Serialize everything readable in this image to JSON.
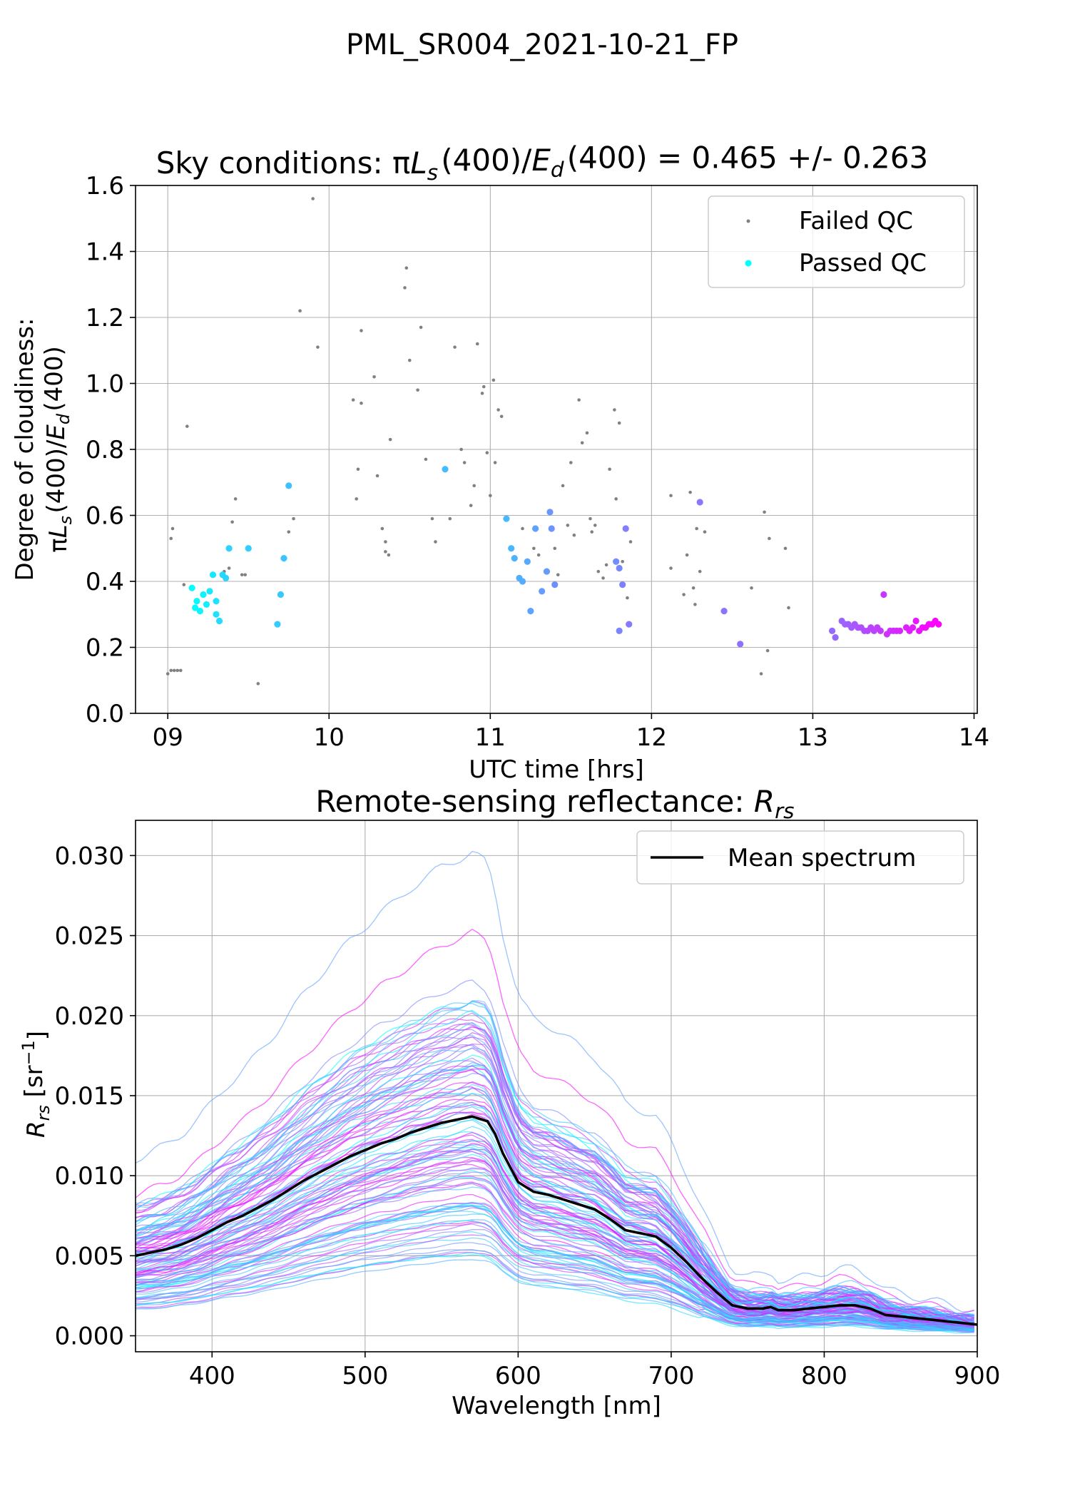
{
  "figure": {
    "suptitle": "PML_SR004_2021-10-21_FP"
  },
  "chart_data": [
    {
      "type": "scatter",
      "title": "Sky conditions: πLs(400)/Ed(400) = 0.465 +/- 0.263",
      "xlabel": "UTC time [hrs]",
      "ylabel_line1": "Degree of cloudiness:",
      "ylabel_line2": "πLs(400)/Ed(400)",
      "xlim": [
        8.8,
        14.02
      ],
      "ylim": [
        0.0,
        1.6
      ],
      "xticks": [
        9,
        10,
        11,
        12,
        13,
        14
      ],
      "xtick_labels": [
        "09",
        "10",
        "11",
        "12",
        "13",
        "14"
      ],
      "yticks": [
        0.0,
        0.2,
        0.4,
        0.6,
        0.8,
        1.0,
        1.2,
        1.4,
        1.6
      ],
      "ytick_labels": [
        "0.0",
        "0.2",
        "0.4",
        "0.6",
        "0.8",
        "1.0",
        "1.2",
        "1.4",
        "1.6"
      ],
      "grid": true,
      "legend_position": "top-right",
      "colormap_colors": [
        "#00ffff",
        "#ff00ff"
      ],
      "series": [
        {
          "name": "Failed QC",
          "color": "#808080",
          "points": [
            [
              9.0,
              0.12
            ],
            [
              9.02,
              0.13
            ],
            [
              9.04,
              0.13
            ],
            [
              9.06,
              0.13
            ],
            [
              9.08,
              0.13
            ],
            [
              9.02,
              0.53
            ],
            [
              9.03,
              0.56
            ],
            [
              9.1,
              0.39
            ],
            [
              9.12,
              0.87
            ],
            [
              9.35,
              0.43
            ],
            [
              9.38,
              0.44
            ],
            [
              9.4,
              0.58
            ],
            [
              9.42,
              0.65
            ],
            [
              9.46,
              0.42
            ],
            [
              9.48,
              0.42
            ],
            [
              9.56,
              0.09
            ],
            [
              9.75,
              0.55
            ],
            [
              9.78,
              0.59
            ],
            [
              9.82,
              1.22
            ],
            [
              9.9,
              1.56
            ],
            [
              9.93,
              1.11
            ],
            [
              10.15,
              0.95
            ],
            [
              10.17,
              0.65
            ],
            [
              10.18,
              0.74
            ],
            [
              10.2,
              1.16
            ],
            [
              10.2,
              0.94
            ],
            [
              10.28,
              1.02
            ],
            [
              10.3,
              0.72
            ],
            [
              10.33,
              0.56
            ],
            [
              10.35,
              0.52
            ],
            [
              10.35,
              0.49
            ],
            [
              10.37,
              0.48
            ],
            [
              10.38,
              0.83
            ],
            [
              10.47,
              1.29
            ],
            [
              10.48,
              1.35
            ],
            [
              10.5,
              1.07
            ],
            [
              10.55,
              0.98
            ],
            [
              10.57,
              1.17
            ],
            [
              10.6,
              0.77
            ],
            [
              10.64,
              0.59
            ],
            [
              10.66,
              0.52
            ],
            [
              10.75,
              0.59
            ],
            [
              10.78,
              1.11
            ],
            [
              10.82,
              0.8
            ],
            [
              10.84,
              0.76
            ],
            [
              10.88,
              0.63
            ],
            [
              10.9,
              0.69
            ],
            [
              10.92,
              1.12
            ],
            [
              10.95,
              0.97
            ],
            [
              10.96,
              0.99
            ],
            [
              10.98,
              0.79
            ],
            [
              11.0,
              0.66
            ],
            [
              11.02,
              1.01
            ],
            [
              11.03,
              0.76
            ],
            [
              11.05,
              0.92
            ],
            [
              11.07,
              0.9
            ],
            [
              11.2,
              0.56
            ],
            [
              11.27,
              0.5
            ],
            [
              11.3,
              0.48
            ],
            [
              11.4,
              0.5
            ],
            [
              11.42,
              0.42
            ],
            [
              11.45,
              0.69
            ],
            [
              11.48,
              0.57
            ],
            [
              11.5,
              0.76
            ],
            [
              11.52,
              0.54
            ],
            [
              11.55,
              0.95
            ],
            [
              11.57,
              0.82
            ],
            [
              11.6,
              0.85
            ],
            [
              11.62,
              0.59
            ],
            [
              11.63,
              0.55
            ],
            [
              11.65,
              0.57
            ],
            [
              11.67,
              0.43
            ],
            [
              11.7,
              0.41
            ],
            [
              11.72,
              0.45
            ],
            [
              11.74,
              0.74
            ],
            [
              11.77,
              0.92
            ],
            [
              11.78,
              0.65
            ],
            [
              11.8,
              0.88
            ],
            [
              11.82,
              0.46
            ],
            [
              11.85,
              0.35
            ],
            [
              11.87,
              0.52
            ],
            [
              12.12,
              0.66
            ],
            [
              12.12,
              0.44
            ],
            [
              12.2,
              0.36
            ],
            [
              12.22,
              0.48
            ],
            [
              12.24,
              0.67
            ],
            [
              12.26,
              0.38
            ],
            [
              12.27,
              0.33
            ],
            [
              12.28,
              0.56
            ],
            [
              12.3,
              0.43
            ],
            [
              12.33,
              0.55
            ],
            [
              12.62,
              0.38
            ],
            [
              12.68,
              0.12
            ],
            [
              12.7,
              0.61
            ],
            [
              12.72,
              0.19
            ],
            [
              12.73,
              0.53
            ],
            [
              12.83,
              0.5
            ],
            [
              12.85,
              0.32
            ]
          ]
        },
        {
          "name": "Passed QC",
          "color": "#00ffff",
          "points": [
            [
              9.15,
              0.38
            ],
            [
              9.17,
              0.32
            ],
            [
              9.18,
              0.34
            ],
            [
              9.2,
              0.31
            ],
            [
              9.22,
              0.36
            ],
            [
              9.24,
              0.33
            ],
            [
              9.26,
              0.37
            ],
            [
              9.28,
              0.42
            ],
            [
              9.3,
              0.34
            ],
            [
              9.3,
              0.3
            ],
            [
              9.32,
              0.28
            ],
            [
              9.34,
              0.42
            ],
            [
              9.36,
              0.41
            ],
            [
              9.38,
              0.5
            ],
            [
              9.5,
              0.5
            ],
            [
              9.68,
              0.27
            ],
            [
              9.7,
              0.36
            ],
            [
              9.72,
              0.47
            ],
            [
              9.75,
              0.69
            ],
            [
              10.72,
              0.74
            ],
            [
              11.1,
              0.59
            ],
            [
              11.13,
              0.5
            ],
            [
              11.15,
              0.47
            ],
            [
              11.18,
              0.41
            ],
            [
              11.2,
              0.4
            ],
            [
              11.23,
              0.46
            ],
            [
              11.25,
              0.31
            ],
            [
              11.28,
              0.56
            ],
            [
              11.32,
              0.37
            ],
            [
              11.35,
              0.43
            ],
            [
              11.37,
              0.61
            ],
            [
              11.38,
              0.56
            ],
            [
              11.4,
              0.39
            ],
            [
              11.78,
              0.46
            ],
            [
              11.8,
              0.44
            ],
            [
              11.8,
              0.25
            ],
            [
              11.82,
              0.39
            ],
            [
              11.84,
              0.56
            ],
            [
              11.86,
              0.27
            ],
            [
              12.3,
              0.64
            ],
            [
              12.45,
              0.31
            ],
            [
              12.55,
              0.21
            ],
            [
              13.12,
              0.25
            ],
            [
              13.14,
              0.23
            ],
            [
              13.18,
              0.28
            ],
            [
              13.2,
              0.27
            ],
            [
              13.22,
              0.27
            ],
            [
              13.24,
              0.26
            ],
            [
              13.26,
              0.27
            ],
            [
              13.28,
              0.26
            ],
            [
              13.3,
              0.26
            ],
            [
              13.32,
              0.25
            ],
            [
              13.34,
              0.25
            ],
            [
              13.36,
              0.26
            ],
            [
              13.38,
              0.25
            ],
            [
              13.4,
              0.26
            ],
            [
              13.42,
              0.25
            ],
            [
              13.44,
              0.36
            ],
            [
              13.46,
              0.24
            ],
            [
              13.48,
              0.25
            ],
            [
              13.5,
              0.25
            ],
            [
              13.52,
              0.25
            ],
            [
              13.54,
              0.25
            ],
            [
              13.58,
              0.26
            ],
            [
              13.6,
              0.25
            ],
            [
              13.62,
              0.26
            ],
            [
              13.64,
              0.28
            ],
            [
              13.66,
              0.25
            ],
            [
              13.68,
              0.26
            ],
            [
              13.7,
              0.26
            ],
            [
              13.72,
              0.27
            ],
            [
              13.74,
              0.27
            ],
            [
              13.76,
              0.28
            ],
            [
              13.78,
              0.27
            ]
          ]
        }
      ]
    },
    {
      "type": "line",
      "title": "Remote-sensing reflectance: Rrs",
      "xlabel": "Wavelength [nm]",
      "ylabel": "Rrs  [sr−1]",
      "xlim": [
        350,
        900
      ],
      "ylim": [
        -0.001,
        0.0322
      ],
      "xticks": [
        400,
        500,
        600,
        700,
        800,
        900
      ],
      "xtick_labels": [
        "400",
        "500",
        "600",
        "700",
        "800",
        "900"
      ],
      "yticks": [
        0.0,
        0.005,
        0.01,
        0.015,
        0.02,
        0.025,
        0.03
      ],
      "ytick_labels": [
        "0.000",
        "0.005",
        "0.010",
        "0.015",
        "0.020",
        "0.025",
        "0.030"
      ],
      "grid": true,
      "legend_position": "top-right",
      "mean_spectrum": {
        "name": "Mean spectrum",
        "color": "#000000",
        "x": [
          350,
          360,
          370,
          380,
          390,
          400,
          410,
          420,
          430,
          440,
          450,
          460,
          470,
          480,
          490,
          500,
          510,
          520,
          530,
          540,
          550,
          560,
          570,
          580,
          585,
          590,
          600,
          610,
          620,
          630,
          640,
          650,
          660,
          670,
          680,
          690,
          700,
          710,
          720,
          730,
          740,
          750,
          760,
          765,
          770,
          780,
          790,
          800,
          810,
          820,
          830,
          840,
          850,
          860,
          870,
          880,
          890,
          900
        ],
        "y": [
          0.005,
          0.0052,
          0.0054,
          0.0057,
          0.0061,
          0.0066,
          0.0071,
          0.0075,
          0.008,
          0.0085,
          0.0091,
          0.0097,
          0.0102,
          0.0107,
          0.0112,
          0.0116,
          0.012,
          0.0123,
          0.0127,
          0.013,
          0.0133,
          0.0135,
          0.0137,
          0.0134,
          0.0126,
          0.0114,
          0.0096,
          0.009,
          0.0088,
          0.0085,
          0.0082,
          0.0079,
          0.0073,
          0.0066,
          0.0064,
          0.0062,
          0.0055,
          0.0046,
          0.0036,
          0.0027,
          0.0019,
          0.0017,
          0.0017,
          0.0018,
          0.0016,
          0.0016,
          0.0017,
          0.0018,
          0.0019,
          0.0019,
          0.0017,
          0.0013,
          0.0012,
          0.0011,
          0.001,
          0.0009,
          0.0008,
          0.0007
        ]
      },
      "individual_spectra_count": 120,
      "individual_spectra_scale_range": [
        0.2,
        2.2
      ],
      "individual_spectra_colors": [
        "#00ffff",
        "#ff00ff"
      ]
    }
  ]
}
